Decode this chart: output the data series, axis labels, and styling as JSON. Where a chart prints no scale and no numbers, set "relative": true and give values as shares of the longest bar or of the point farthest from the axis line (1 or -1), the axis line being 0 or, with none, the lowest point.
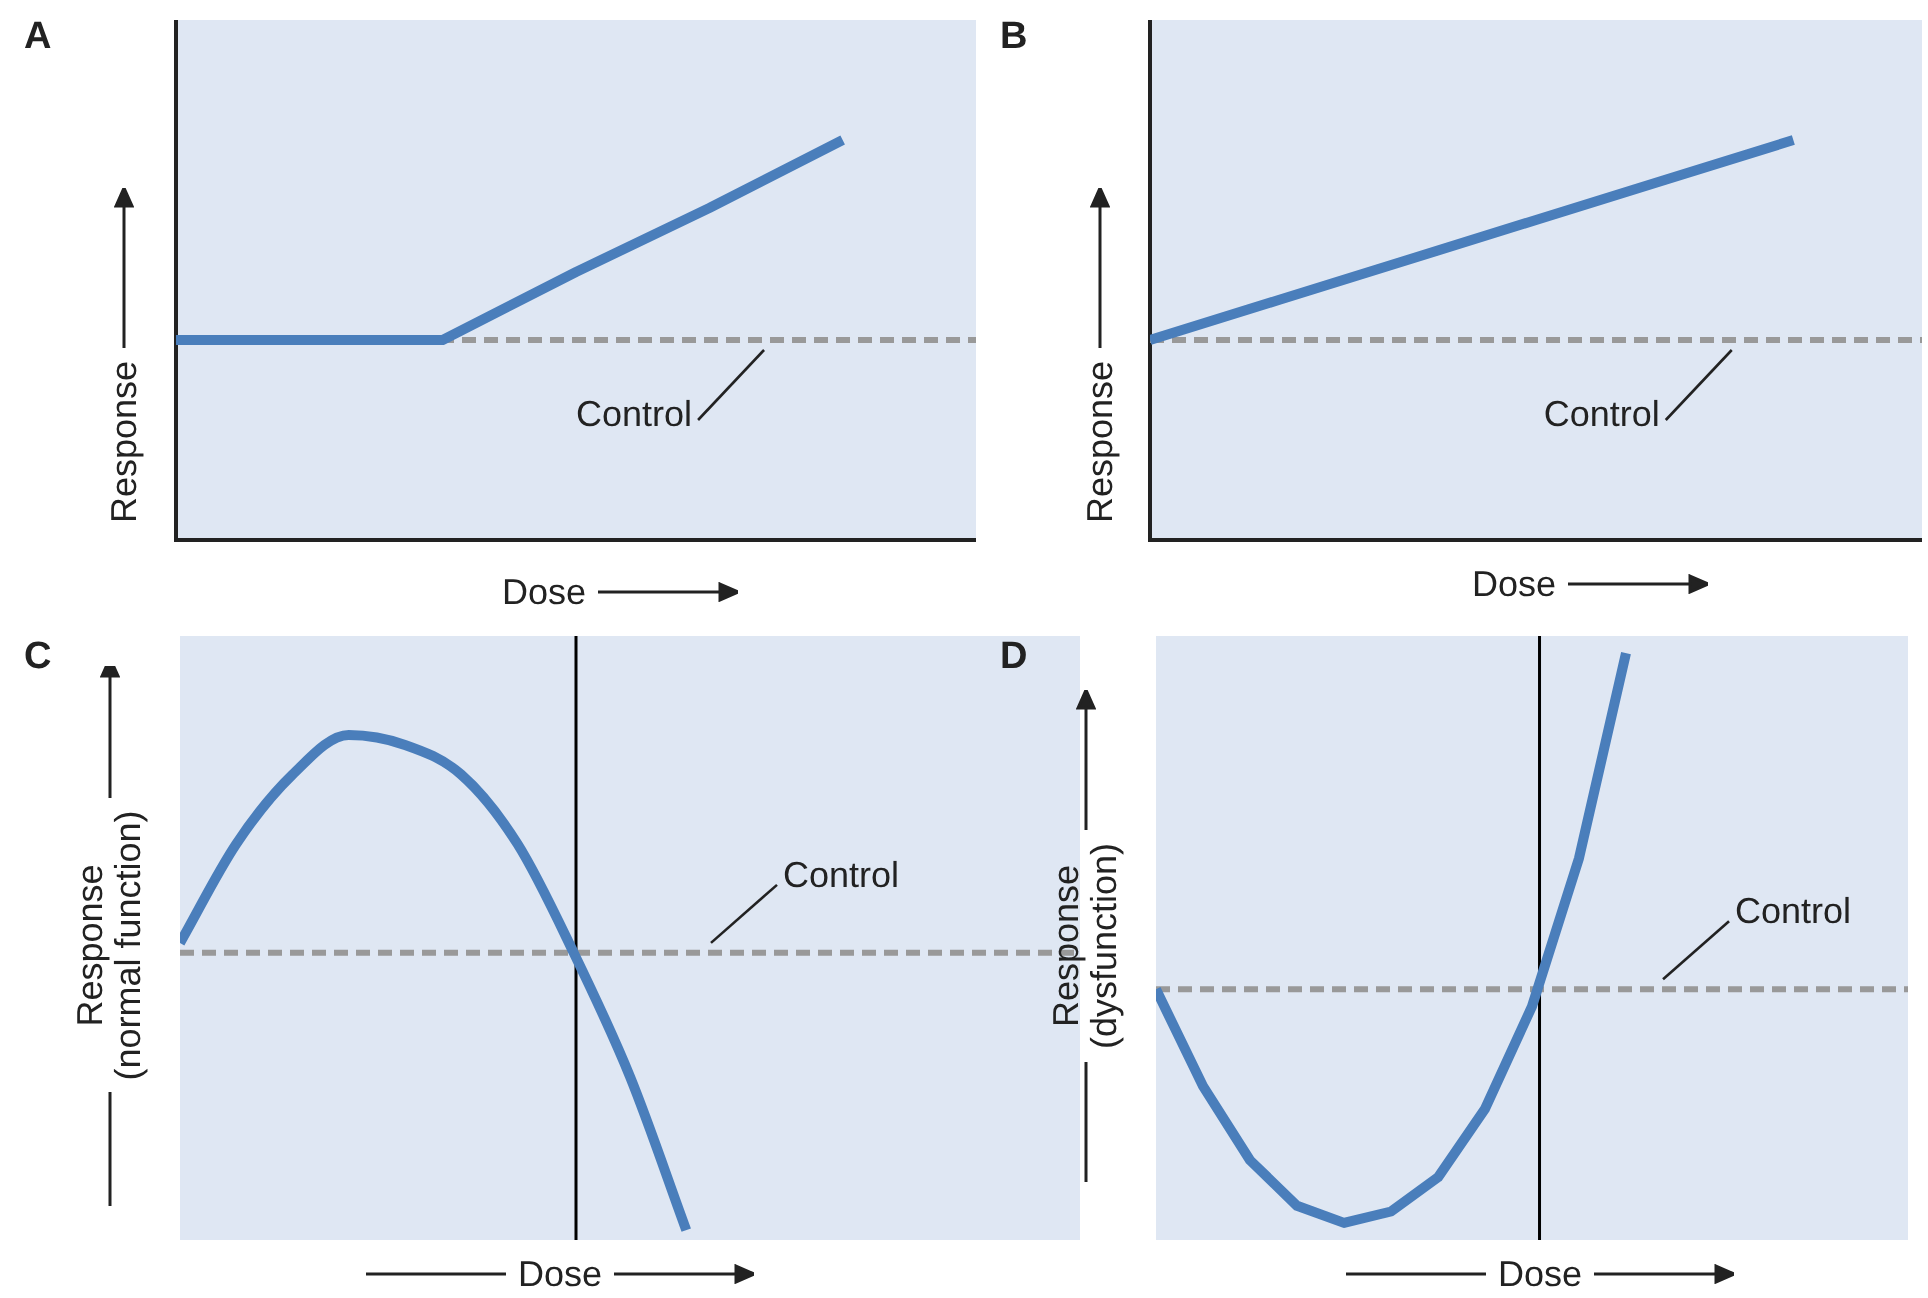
{
  "chart_data": [
    {
      "type": "line",
      "title": "A",
      "xlabel": "Dose",
      "ylabel": "Response",
      "relative": true,
      "tick_labels": false,
      "color": "#4a7ebb",
      "categories": [
        null,
        null,
        null,
        null,
        null,
        null,
        null
      ],
      "values": [
        0.5,
        0.5,
        0.5,
        0.67,
        0.83,
        1,
        null
      ],
      "ref_lines": [
        {
          "axis": "y",
          "value": 0.5,
          "label": "Control",
          "color": "#999999",
          "line_style": "dashed"
        }
      ]
    },
    {
      "type": "line",
      "title": "B",
      "xlabel": "Dose",
      "ylabel": "Response",
      "relative": true,
      "tick_labels": false,
      "color": "#4a7ebb",
      "categories": [
        null,
        null,
        null,
        null,
        null,
        null,
        null
      ],
      "values": [
        0.5,
        0.6,
        0.7,
        0.8,
        0.9,
        1,
        null
      ],
      "ref_lines": [
        {
          "axis": "y",
          "value": 0.5,
          "label": "Control",
          "color": "#999999",
          "line_style": "dashed"
        }
      ]
    },
    {
      "type": "line",
      "title": "C",
      "xlabel": "Dose",
      "ylabel": "Response\n(normal function)",
      "relative": true,
      "tick_labels": false,
      "color": "#4a7ebb",
      "categories": [
        null,
        null,
        null,
        null,
        null,
        null,
        null,
        null,
        null,
        null,
        null,
        null,
        null,
        null,
        null,
        null,
        null
      ],
      "values": [
        0.58,
        0.78,
        0.92,
        1,
        0.98,
        0.92,
        0.78,
        0.56,
        0.31,
        0,
        null,
        null,
        null,
        null,
        null,
        null,
        null
      ],
      "ref_lines": [
        {
          "axis": "y",
          "value": 0.56,
          "label": "Control",
          "color": "#999999",
          "line_style": "dashed"
        }
      ]
    },
    {
      "type": "line",
      "title": "D",
      "xlabel": "Dose",
      "ylabel": "Response\n(dysfunction)",
      "relative": true,
      "tick_labels": false,
      "color": "#4a7ebb",
      "categories": [
        null,
        null,
        null,
        null,
        null,
        null,
        null,
        null,
        null,
        null,
        null,
        null,
        null,
        null,
        null,
        null,
        null
      ],
      "values": [
        0.41,
        0.24,
        0.11,
        0.03,
        0,
        0.02,
        0.08,
        0.2,
        0.38,
        0.64,
        1,
        null,
        null,
        null,
        null,
        null,
        null
      ],
      "ref_lines": [
        {
          "axis": "y",
          "value": 0.41,
          "label": "Control",
          "color": "#999999",
          "line_style": "dashed"
        }
      ]
    }
  ]
}
